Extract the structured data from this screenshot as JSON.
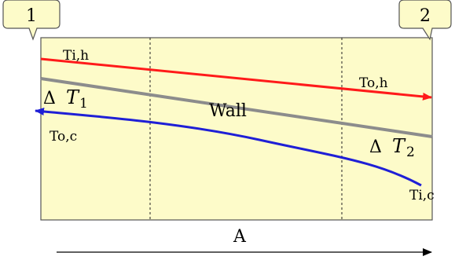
{
  "colors": {
    "panel_fill": "#fdfbc9",
    "border": "#555555",
    "hot": "#ff1a1a",
    "cold": "#1f1fd6",
    "wall": "#8c8c8c",
    "callout_fill": "#fdfbc9"
  },
  "station_1": {
    "label": "1"
  },
  "station_2": {
    "label": "2"
  },
  "hot_stream": {
    "inlet_label": "Ti,h",
    "outlet_label": "To,h"
  },
  "cold_stream": {
    "inlet_label": "Ti,c",
    "outlet_label": "To,c"
  },
  "wall": {
    "label": "Wall"
  },
  "delta_t1": {
    "symbol": "Δ",
    "var": "T",
    "sub": "1"
  },
  "delta_t2": {
    "symbol": "Δ",
    "var": "T",
    "sub": "2"
  },
  "area_axis": {
    "label": "A"
  }
}
